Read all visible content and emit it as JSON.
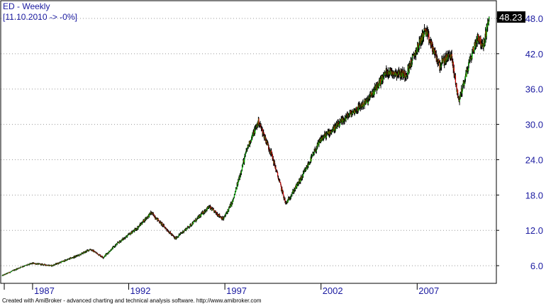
{
  "chart": {
    "title": "ED - Weekly",
    "subtitle": "[11.10.2010 -> -0%]",
    "last_price_label": "48.23",
    "footer": "Created with AmiBroker - advanced charting and technical analysis software. http://www.amibroker.com"
  },
  "colors": {
    "frame": "#000000",
    "grid": "#9a9a9a",
    "axis_text": "#1a1aa0",
    "bar": "#000000",
    "up_body": "#00c000",
    "down_body": "#d00000",
    "label_bg": "#000000",
    "label_text": "#ffffff"
  },
  "chart_data": {
    "type": "candlestick",
    "timeframe": "weekly",
    "x_axis": {
      "type": "date",
      "range": [
        "1985-06",
        "2010-10"
      ],
      "tick_labels": [
        "1987",
        "1992",
        "1997",
        "2002",
        "2007"
      ]
    },
    "y_axis": {
      "side": "right",
      "range": [
        3.0,
        51.0
      ],
      "tick_values": [
        6.0,
        12.0,
        18.0,
        24.0,
        30.0,
        36.0,
        42.0,
        48.0
      ],
      "tick_labels": [
        "6.0",
        "12.0",
        "18.0",
        "24.0",
        "30.0",
        "36.0",
        "42.0",
        "48.0"
      ]
    },
    "grid": "horizontal dotted",
    "last_close": 48.23,
    "price_path_approx": [
      {
        "date": "1985-06",
        "close": 4.3
      },
      {
        "date": "1986-06",
        "close": 5.8
      },
      {
        "date": "1987-01",
        "close": 6.4
      },
      {
        "date": "1988-01",
        "close": 6.0
      },
      {
        "date": "1989-06",
        "close": 7.8
      },
      {
        "date": "1990-01",
        "close": 8.8
      },
      {
        "date": "1990-09",
        "close": 7.4
      },
      {
        "date": "1991-06",
        "close": 9.8
      },
      {
        "date": "1992-06",
        "close": 12.3
      },
      {
        "date": "1993-03",
        "close": 15.0
      },
      {
        "date": "1994-06",
        "close": 10.6
      },
      {
        "date": "1995-06",
        "close": 13.5
      },
      {
        "date": "1996-03",
        "close": 16.0
      },
      {
        "date": "1996-12",
        "close": 13.9
      },
      {
        "date": "1997-06",
        "close": 17.0
      },
      {
        "date": "1998-03",
        "close": 26.0
      },
      {
        "date": "1998-10",
        "close": 30.5
      },
      {
        "date": "1999-06",
        "close": 25.0
      },
      {
        "date": "2000-03",
        "close": 16.5
      },
      {
        "date": "2001-01",
        "close": 21.0
      },
      {
        "date": "2002-01",
        "close": 27.5
      },
      {
        "date": "2002-10",
        "close": 29.5
      },
      {
        "date": "2003-06",
        "close": 31.5
      },
      {
        "date": "2004-06",
        "close": 34.0
      },
      {
        "date": "2005-06",
        "close": 39.0
      },
      {
        "date": "2006-06",
        "close": 38.5
      },
      {
        "date": "2007-06",
        "close": 46.0
      },
      {
        "date": "2008-03",
        "close": 40.0
      },
      {
        "date": "2008-10",
        "close": 42.0
      },
      {
        "date": "2009-03",
        "close": 34.0
      },
      {
        "date": "2009-10",
        "close": 41.0
      },
      {
        "date": "2010-03",
        "close": 45.0
      },
      {
        "date": "2010-06",
        "close": 43.0
      },
      {
        "date": "2010-10",
        "close": 48.23
      }
    ]
  }
}
